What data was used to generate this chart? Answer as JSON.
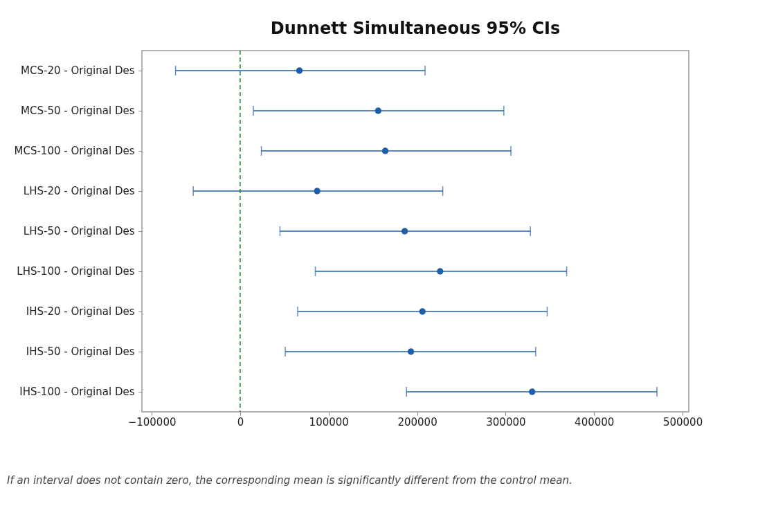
{
  "chart_data": {
    "type": "scatter",
    "orientation": "horizontal",
    "title": "Dunnett Simultaneous 95% CIs",
    "categories": [
      "MCS-20 - Original Des",
      "MCS-50 - Original Des",
      "MCS-100 - Original Des",
      "LHS-20 - Original Des",
      "LHS-50 - Original Des",
      "LHS-100 - Original Des",
      "IHS-20 - Original Des",
      "IHS-50 - Original Des",
      "IHS-100 - Original Des"
    ],
    "values": [
      67000,
      156000,
      164000,
      87000,
      186000,
      226000,
      206000,
      193000,
      330000
    ],
    "errors": [
      [
        -73000,
        209000
      ],
      [
        15000,
        298000
      ],
      [
        24000,
        306000
      ],
      [
        -53000,
        229000
      ],
      [
        45000,
        328000
      ],
      [
        85000,
        369000
      ],
      [
        65000,
        347000
      ],
      [
        51000,
        334000
      ],
      [
        188000,
        471000
      ]
    ],
    "color": "#1f5fa8",
    "marker": "circle",
    "grid": false,
    "xlim": [
      -111000,
      507000
    ],
    "xticks": [
      -100000,
      0,
      100000,
      200000,
      300000,
      400000,
      500000
    ],
    "ref_lines": [
      {
        "axis": "x",
        "value": 0,
        "color": "#1a8a2a",
        "line_style": "dashed"
      }
    ],
    "annotations": [
      "If an interval does not contain zero, the corresponding mean is significantly different from the control mean."
    ]
  }
}
